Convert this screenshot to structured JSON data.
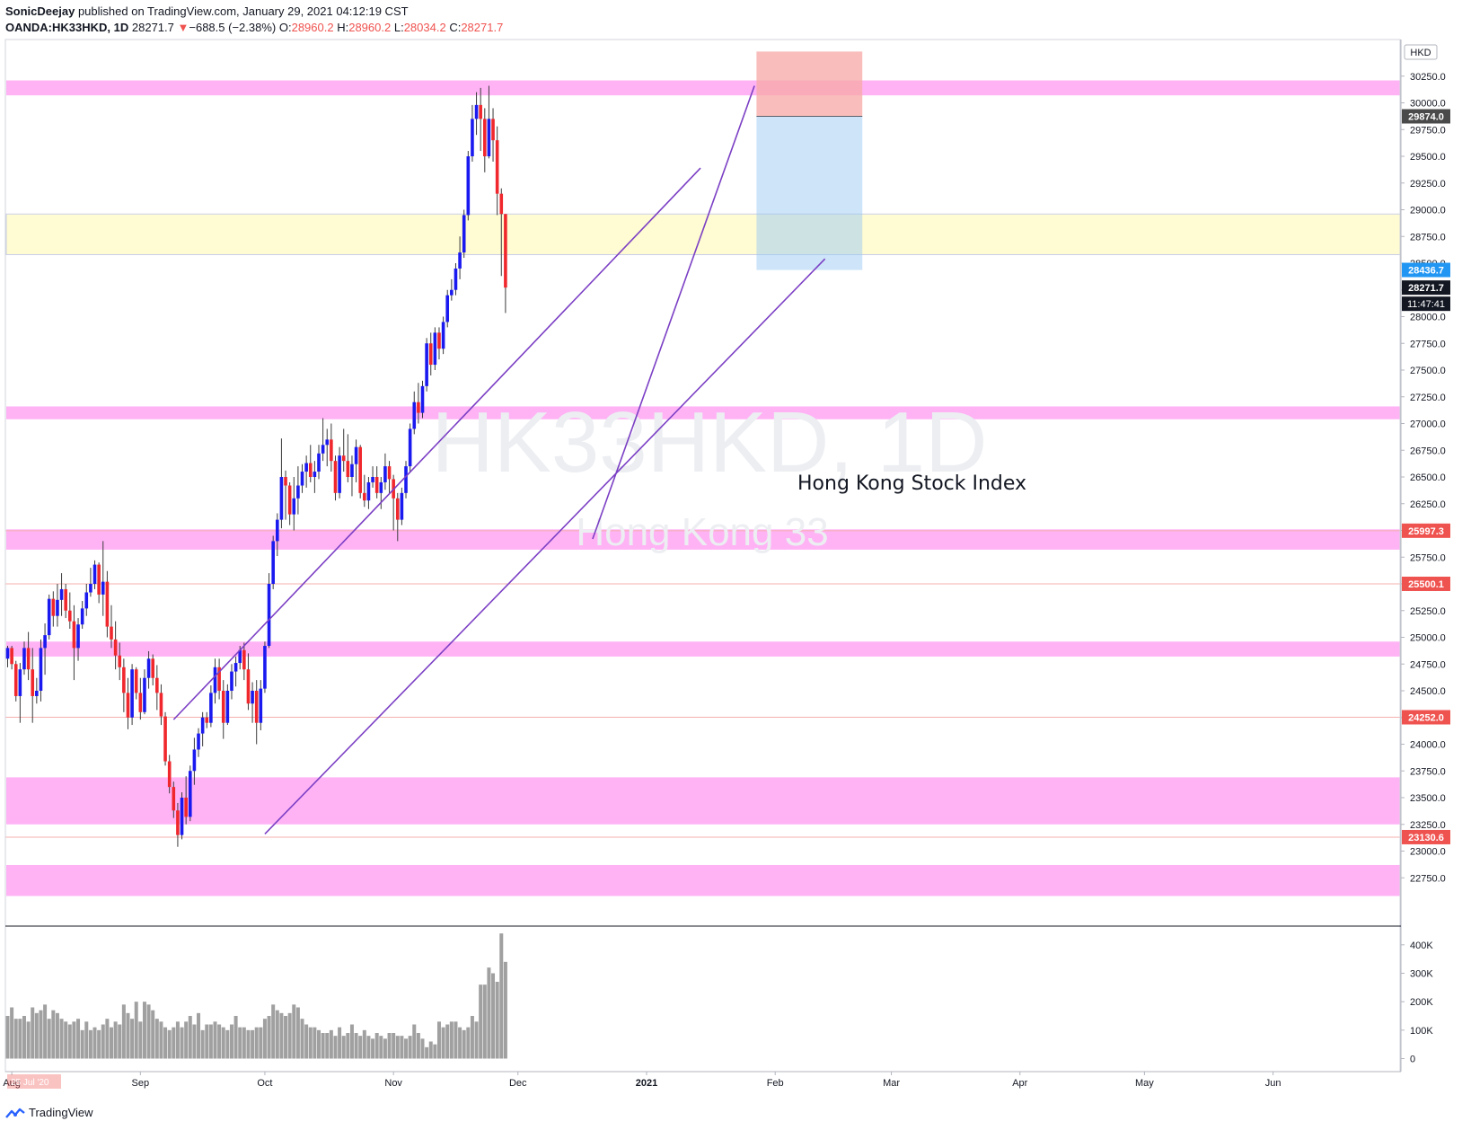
{
  "header": {
    "author": "SonicDeejay",
    "published_text": " published on TradingView.com, January 29, 2021 04:12:19 CST",
    "symbol": "OANDA:HK33HKD, 1D",
    "last": "28271.7",
    "arrow": "▼",
    "change": "−688.5 (−2.38%)",
    "o_label": "O:",
    "o_value": "28960.2",
    "h_label": "H:",
    "h_value": "28960.2",
    "l_label": "L:",
    "l_value": "28034.2",
    "c_label": "C:",
    "c_value": "28271.7"
  },
  "watermark": {
    "main": "HK33HKD, 1D",
    "sub": "Hong Kong 33"
  },
  "annotation": "Hong Kong Stock Index",
  "footer": {
    "brand": "TradingView"
  },
  "colors": {
    "up": "#1a1af0",
    "down": "#f0282d",
    "zone_pink": "#ffb3f5",
    "zone_yellow": "#fffbd2",
    "trendline": "#7b3fc4",
    "target_blue": "#9ccaf3",
    "stop_red": "#f7a8a6",
    "volume": "#a0a0a0",
    "label_red": "#ef5350",
    "label_blue": "#2196f3"
  },
  "chart_data": {
    "type": "candlestick",
    "currency": "HKD",
    "y_ticks": [
      22750,
      23000,
      23250,
      23500,
      23750,
      24000,
      24250,
      24500,
      24750,
      25000,
      25250,
      25500,
      25750,
      26000,
      26250,
      26500,
      26750,
      27000,
      27250,
      27500,
      27750,
      28000,
      28250,
      28500,
      28750,
      29000,
      29250,
      29500,
      29750,
      30000,
      30250
    ],
    "ylim": [
      22550,
      30550
    ],
    "x_labels": [
      {
        "label": "Aug",
        "day": 1
      },
      {
        "label": "Sep",
        "day": 32
      },
      {
        "label": "Oct",
        "day": 62
      },
      {
        "label": "Nov",
        "day": 93
      },
      {
        "label": "Dec",
        "day": 123
      },
      {
        "label": "2021",
        "day": 154
      },
      {
        "label": "Feb",
        "day": 185
      },
      {
        "label": "Mar",
        "day": 213
      },
      {
        "label": "Apr",
        "day": 244
      },
      {
        "label": "May",
        "day": 274
      },
      {
        "label": "Jun",
        "day": 305
      }
    ],
    "date_badge": "25 Jul '20",
    "price_labels": [
      {
        "value": 29874.0,
        "text": "29874.0",
        "style": "dark"
      },
      {
        "value": 28436.7,
        "text": "28436.7",
        "style": "blue"
      },
      {
        "value": 28271.7,
        "text": "28271.7",
        "style": "black"
      },
      {
        "value": 25997.3,
        "text": "25997.3",
        "style": "red"
      },
      {
        "value": 25500.1,
        "text": "25500.1",
        "style": "red"
      },
      {
        "value": 24252.0,
        "text": "24252.0",
        "style": "red"
      },
      {
        "value": 23130.6,
        "text": "23130.6",
        "style": "red"
      }
    ],
    "countdown": "11:47:41",
    "zones": [
      {
        "from": 30070,
        "to": 30210,
        "type": "pink"
      },
      {
        "from": 28580,
        "to": 28960,
        "type": "yellow"
      },
      {
        "from": 27040,
        "to": 27160,
        "type": "pink"
      },
      {
        "from": 25820,
        "to": 26010,
        "type": "pink"
      },
      {
        "from": 24820,
        "to": 24960,
        "type": "pink"
      },
      {
        "from": 23250,
        "to": 23690,
        "type": "pink"
      },
      {
        "from": 22580,
        "to": 22870,
        "type": "pink"
      }
    ],
    "trendlines": [
      {
        "d1": 40,
        "p1": 24230,
        "d2": 167,
        "p2": 29390
      },
      {
        "d1": 62,
        "p1": 23160,
        "d2": 197,
        "p2": 28540
      },
      {
        "d1": 141,
        "p1": 25920,
        "d2": 180,
        "p2": 30160
      }
    ],
    "position": {
      "d1": 180.5,
      "d2": 206,
      "entry": 29874.0,
      "stop": 30480,
      "target": 28436.7
    },
    "candles": [
      [
        24800,
        24920,
        24720,
        24900
      ],
      [
        24900,
        24920,
        24700,
        24750
      ],
      [
        24750,
        24780,
        24400,
        24450
      ],
      [
        24450,
        24760,
        24200,
        24700
      ],
      [
        24700,
        24960,
        24650,
        24900
      ],
      [
        24900,
        25050,
        24600,
        24700
      ],
      [
        24700,
        24900,
        24200,
        24450
      ],
      [
        24450,
        24620,
        24380,
        24500
      ],
      [
        24500,
        24980,
        24400,
        24900
      ],
      [
        24900,
        25130,
        24650,
        25020
      ],
      [
        25020,
        25400,
        24980,
        25360
      ],
      [
        25360,
        25430,
        25100,
        25200
      ],
      [
        25200,
        25500,
        25100,
        25350
      ],
      [
        25350,
        25600,
        25200,
        25450
      ],
      [
        25450,
        25500,
        25180,
        25250
      ],
      [
        25250,
        25420,
        25080,
        25150
      ],
      [
        25150,
        25300,
        24600,
        24900
      ],
      [
        24900,
        25180,
        24780,
        25120
      ],
      [
        25120,
        25340,
        25080,
        25270
      ],
      [
        25270,
        25500,
        25200,
        25420
      ],
      [
        25420,
        25650,
        25380,
        25500
      ],
      [
        25500,
        25720,
        25450,
        25680
      ],
      [
        25680,
        25700,
        25320,
        25400
      ],
      [
        25400,
        25900,
        25200,
        25520
      ],
      [
        25520,
        25620,
        25000,
        25100
      ],
      [
        25100,
        25300,
        24900,
        24980
      ],
      [
        24980,
        25150,
        24700,
        24830
      ],
      [
        24830,
        24950,
        24600,
        24720
      ],
      [
        24720,
        24800,
        24300,
        24480
      ],
      [
        24480,
        24620,
        24140,
        24250
      ],
      [
        24250,
        24750,
        24180,
        24700
      ],
      [
        24700,
        24720,
        24420,
        24480
      ],
      [
        24480,
        24620,
        24230,
        24300
      ],
      [
        24300,
        24700,
        24280,
        24620
      ],
      [
        24620,
        24870,
        24520,
        24800
      ],
      [
        24800,
        24840,
        24550,
        24620
      ],
      [
        24620,
        24740,
        24320,
        24480
      ],
      [
        24480,
        24560,
        24180,
        24260
      ],
      [
        24260,
        24300,
        23800,
        23840
      ],
      [
        23840,
        23900,
        23540,
        23600
      ],
      [
        23600,
        23650,
        23310,
        23380
      ],
      [
        23380,
        23450,
        23040,
        23150
      ],
      [
        23150,
        23550,
        23110,
        23500
      ],
      [
        23500,
        23700,
        23250,
        23320
      ],
      [
        23320,
        23800,
        23280,
        23750
      ],
      [
        23750,
        24060,
        23620,
        23950
      ],
      [
        23950,
        24150,
        23880,
        24100
      ],
      [
        24100,
        24300,
        23980,
        24250
      ],
      [
        24250,
        24300,
        24150,
        24200
      ],
      [
        24200,
        24550,
        24160,
        24480
      ],
      [
        24480,
        24800,
        24380,
        24720
      ],
      [
        24720,
        24800,
        24420,
        24500
      ],
      [
        24500,
        24600,
        24050,
        24200
      ],
      [
        24200,
        24560,
        24180,
        24500
      ],
      [
        24500,
        24750,
        24420,
        24680
      ],
      [
        24680,
        24820,
        24540,
        24760
      ],
      [
        24760,
        24920,
        24700,
        24880
      ],
      [
        24880,
        24950,
        24600,
        24700
      ],
      [
        24700,
        24850,
        24320,
        24380
      ],
      [
        24380,
        24580,
        24200,
        24500
      ],
      [
        24500,
        24600,
        24000,
        24200
      ],
      [
        24200,
        24600,
        24130,
        24520
      ],
      [
        24520,
        24960,
        24480,
        24920
      ],
      [
        24920,
        25600,
        24900,
        25500
      ],
      [
        25500,
        25950,
        25450,
        25900
      ],
      [
        25900,
        26160,
        25760,
        26100
      ],
      [
        26100,
        26860,
        26020,
        26500
      ],
      [
        26500,
        26560,
        26100,
        26420
      ],
      [
        26420,
        26450,
        26050,
        26150
      ],
      [
        26150,
        26500,
        26000,
        26300
      ],
      [
        26300,
        26600,
        26150,
        26420
      ],
      [
        26420,
        26620,
        26350,
        26550
      ],
      [
        26550,
        26700,
        26400,
        26630
      ],
      [
        26630,
        26800,
        26450,
        26500
      ],
      [
        26500,
        26650,
        26350,
        26550
      ],
      [
        26550,
        26800,
        26480,
        26720
      ],
      [
        26720,
        27050,
        26650,
        26800
      ],
      [
        26800,
        26950,
        26600,
        26850
      ],
      [
        26850,
        27000,
        26550,
        26650
      ],
      [
        26650,
        26700,
        26280,
        26350
      ],
      [
        26350,
        26780,
        26300,
        26700
      ],
      [
        26700,
        26950,
        26550,
        26650
      ],
      [
        26650,
        26900,
        26450,
        26500
      ],
      [
        26500,
        26700,
        26320,
        26620
      ],
      [
        26620,
        26850,
        26450,
        26780
      ],
      [
        26780,
        26800,
        26300,
        26350
      ],
      [
        26350,
        26520,
        26220,
        26280
      ],
      [
        26280,
        26500,
        26200,
        26450
      ],
      [
        26450,
        26600,
        26400,
        26500
      ],
      [
        26500,
        26600,
        26300,
        26350
      ],
      [
        26350,
        26500,
        26200,
        26450
      ],
      [
        26450,
        26720,
        26380,
        26600
      ],
      [
        26600,
        26650,
        26350,
        26480
      ],
      [
        26480,
        26520,
        26000,
        26300
      ],
      [
        26300,
        26350,
        25900,
        26100
      ],
      [
        26100,
        26400,
        26050,
        26350
      ],
      [
        26350,
        26650,
        26300,
        26600
      ],
      [
        26600,
        27000,
        26550,
        26950
      ],
      [
        26950,
        27300,
        26900,
        27200
      ],
      [
        27200,
        27380,
        27000,
        27100
      ],
      [
        27100,
        27400,
        27050,
        27350
      ],
      [
        27350,
        27800,
        27300,
        27750
      ],
      [
        27750,
        27850,
        27450,
        27550
      ],
      [
        27550,
        27900,
        27500,
        27850
      ],
      [
        27850,
        27900,
        27600,
        27700
      ],
      [
        27700,
        28000,
        27650,
        27950
      ],
      [
        27950,
        28250,
        27900,
        28200
      ],
      [
        28200,
        28350,
        28150,
        28250
      ],
      [
        28250,
        28500,
        28200,
        28450
      ],
      [
        28450,
        28750,
        28350,
        28600
      ],
      [
        28600,
        29000,
        28550,
        28950
      ],
      [
        28950,
        29550,
        28900,
        29500
      ],
      [
        29500,
        29980,
        29450,
        29850
      ],
      [
        29850,
        30100,
        29700,
        29980
      ],
      [
        29980,
        30140,
        29550,
        29850
      ],
      [
        29850,
        29950,
        29350,
        29500
      ],
      [
        29500,
        30160,
        29480,
        29850
      ],
      [
        29850,
        29950,
        29450,
        29650
      ],
      [
        29650,
        29780,
        28950,
        29150
      ],
      [
        29150,
        29200,
        28380,
        28960
      ],
      [
        28960,
        28960,
        28034,
        28271.7
      ]
    ],
    "volume": {
      "y_ticks": [
        0,
        100000,
        200000,
        300000,
        400000
      ],
      "y_tick_labels": [
        "0",
        "100K",
        "200K",
        "300K",
        "400K"
      ],
      "ylim": [
        -30000,
        450000
      ],
      "values": [
        150000,
        180000,
        140000,
        140000,
        150000,
        130000,
        180000,
        160000,
        170000,
        190000,
        140000,
        170000,
        160000,
        140000,
        130000,
        120000,
        130000,
        140000,
        100000,
        130000,
        100000,
        110000,
        100000,
        120000,
        140000,
        110000,
        130000,
        120000,
        190000,
        160000,
        140000,
        200000,
        130000,
        200000,
        190000,
        170000,
        140000,
        130000,
        110000,
        100000,
        110000,
        130000,
        110000,
        130000,
        150000,
        120000,
        160000,
        100000,
        120000,
        120000,
        130000,
        120000,
        110000,
        100000,
        120000,
        150000,
        110000,
        110000,
        100000,
        100000,
        110000,
        110000,
        140000,
        150000,
        190000,
        170000,
        160000,
        150000,
        160000,
        190000,
        180000,
        140000,
        120000,
        110000,
        110000,
        100000,
        90000,
        90000,
        100000,
        80000,
        110000,
        80000,
        90000,
        120000,
        90000,
        80000,
        100000,
        80000,
        70000,
        90000,
        80000,
        70000,
        90000,
        90000,
        80000,
        80000,
        70000,
        80000,
        120000,
        90000,
        70000,
        40000,
        60000,
        50000,
        130000,
        110000,
        120000,
        130000,
        130000,
        110000,
        100000,
        110000,
        150000,
        130000,
        260000,
        260000,
        320000,
        300000,
        270000,
        440000,
        340000
      ]
    }
  }
}
